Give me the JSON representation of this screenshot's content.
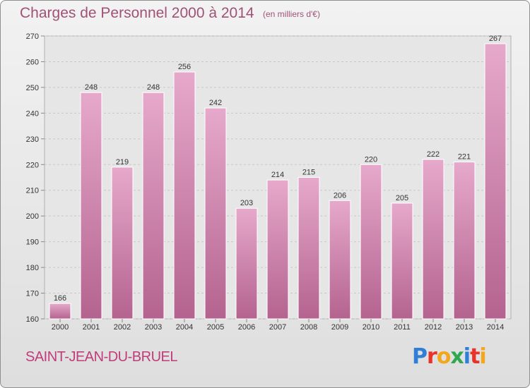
{
  "header": {
    "title": "Charges de Personnel 2000 à 2014",
    "subtitle": "(en milliers d'€)"
  },
  "footer": {
    "commune": "SAINT-JEAN-DU-BRUEL",
    "logo": "Proxiti"
  },
  "logo_letters": [
    {
      "char": "P",
      "color": "#2f7fd8"
    },
    {
      "char": "r",
      "color": "#e8332a"
    },
    {
      "char": "o",
      "color": "#f3a81c"
    },
    {
      "char": "x",
      "color": "#2fa84f"
    },
    {
      "char": "i",
      "color": "#2f7fd8"
    },
    {
      "char": "t",
      "color": "#e8332a"
    },
    {
      "char": "i",
      "color": "#f3a81c"
    }
  ],
  "chart_data": {
    "type": "bar",
    "title": "Charges de Personnel 2000 à 2014",
    "subtitle": "(en milliers d'€)",
    "categories": [
      "2000",
      "2001",
      "2002",
      "2003",
      "2004",
      "2005",
      "2006",
      "2007",
      "2008",
      "2009",
      "2010",
      "2011",
      "2012",
      "2013",
      "2014"
    ],
    "values": [
      166,
      248,
      219,
      248,
      256,
      242,
      203,
      214,
      215,
      206,
      220,
      205,
      222,
      221,
      267
    ],
    "data_labels": [
      "166",
      "248",
      "219",
      "248",
      "256",
      "242",
      "203",
      "214",
      "215",
      "206",
      "220",
      "205",
      "222",
      "221",
      "267"
    ],
    "ylim": [
      160,
      270
    ],
    "yticks": [
      160,
      170,
      180,
      190,
      200,
      210,
      220,
      230,
      240,
      250,
      260,
      270
    ],
    "ytick_labels": [
      "160",
      "170",
      "180",
      "190",
      "200",
      "210",
      "220",
      "230",
      "240",
      "250",
      "260",
      "270"
    ],
    "grid": true,
    "bar_color": "#c7699c",
    "xlabel": "",
    "ylabel": ""
  }
}
